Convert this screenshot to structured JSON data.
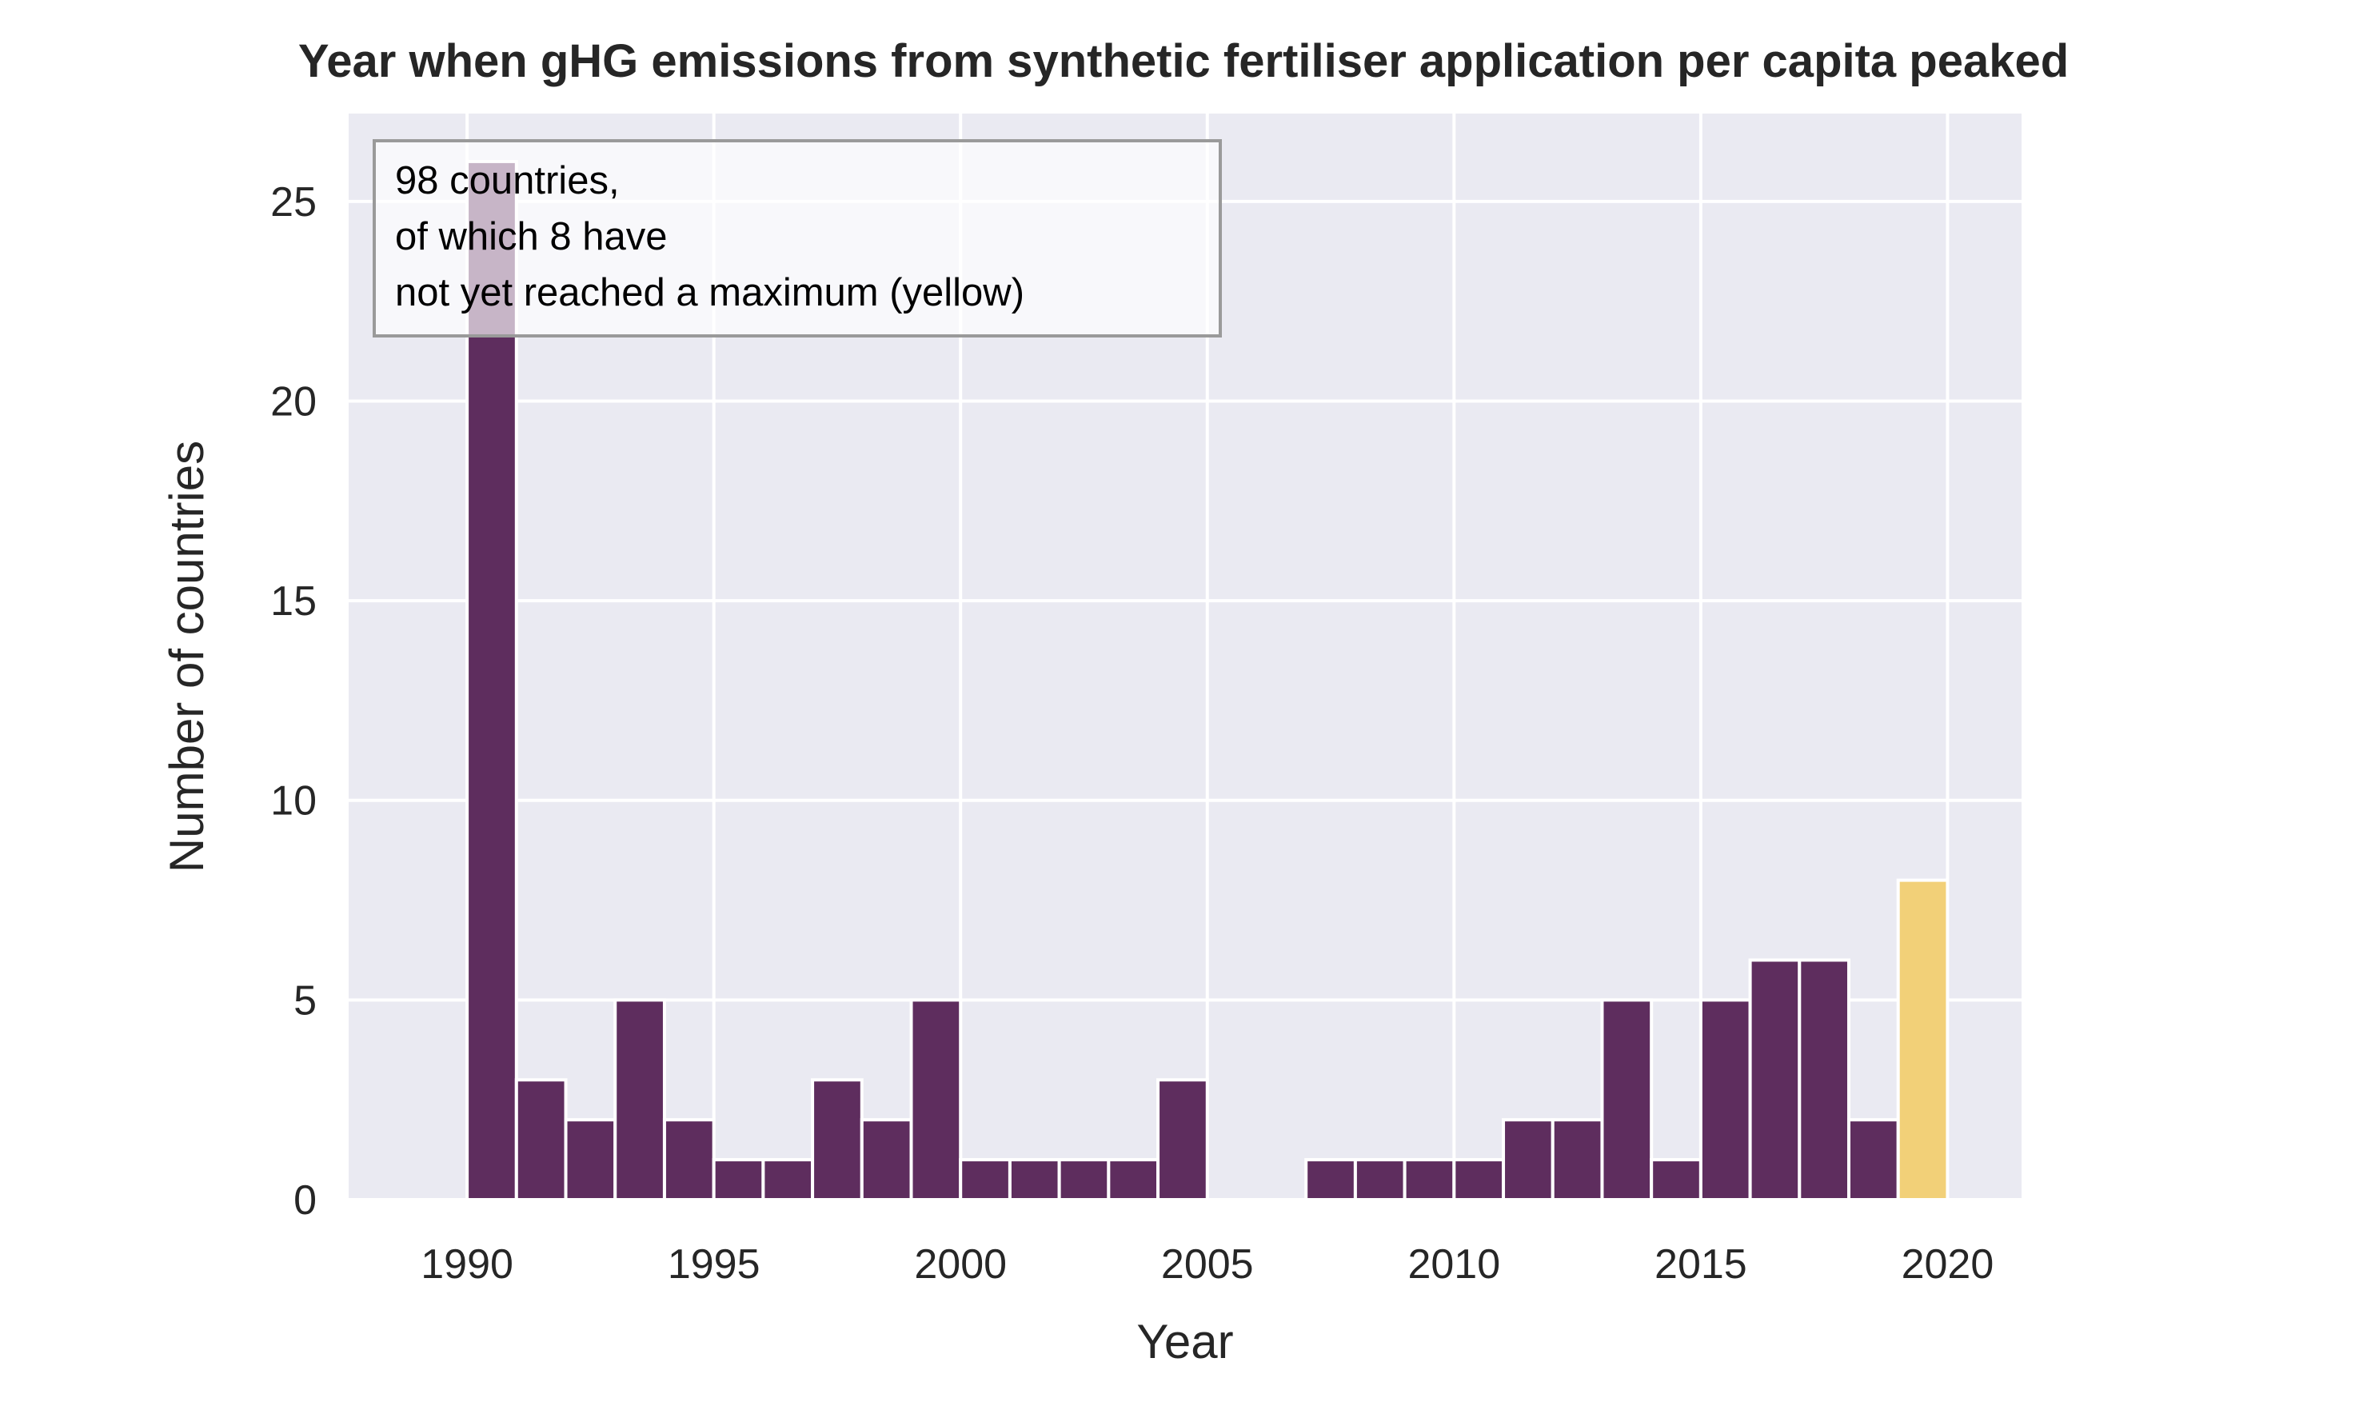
{
  "chart_data": {
    "type": "bar",
    "title": "Year when gHG emissions from synthetic fertiliser application per capita peaked",
    "xlabel": "Year",
    "ylabel": "Number of countries",
    "xlim": [
      1987.6,
      2021.5
    ],
    "ylim": [
      0,
      27.2
    ],
    "xticks": [
      "1990",
      "1995",
      "2000",
      "2005",
      "2010",
      "2015",
      "2020"
    ],
    "yticks": [
      "0",
      "5",
      "10",
      "15",
      "20",
      "25"
    ],
    "grid": true,
    "bin_width": 1,
    "series": [
      {
        "color": "#5e2d5e",
        "bins": [
          {
            "start": 1990,
            "count": 26
          },
          {
            "start": 1991,
            "count": 3
          },
          {
            "start": 1992,
            "count": 2
          },
          {
            "start": 1993,
            "count": 5
          },
          {
            "start": 1994,
            "count": 2
          },
          {
            "start": 1995,
            "count": 1
          },
          {
            "start": 1996,
            "count": 1
          },
          {
            "start": 1997,
            "count": 3
          },
          {
            "start": 1998,
            "count": 2
          },
          {
            "start": 1999,
            "count": 5
          },
          {
            "start": 2000,
            "count": 1
          },
          {
            "start": 2001,
            "count": 1
          },
          {
            "start": 2002,
            "count": 1
          },
          {
            "start": 2003,
            "count": 1
          },
          {
            "start": 2004,
            "count": 3
          },
          {
            "start": 2005,
            "count": 0
          },
          {
            "start": 2006,
            "count": 0
          },
          {
            "start": 2007,
            "count": 1
          },
          {
            "start": 2008,
            "count": 1
          },
          {
            "start": 2009,
            "count": 1
          },
          {
            "start": 2010,
            "count": 1
          },
          {
            "start": 2011,
            "count": 2
          },
          {
            "start": 2012,
            "count": 2
          },
          {
            "start": 2013,
            "count": 5
          },
          {
            "start": 2014,
            "count": 1
          },
          {
            "start": 2015,
            "count": 5
          },
          {
            "start": 2016,
            "count": 6
          },
          {
            "start": 2017,
            "count": 6
          },
          {
            "start": 2018,
            "count": 2
          }
        ]
      },
      {
        "color": "#f2d078",
        "bins": [
          {
            "start": 2019,
            "count": 8
          }
        ]
      }
    ],
    "annotation": {
      "lines": [
        "98 countries,",
        "of which 8 have",
        "not yet reached a maximum (yellow)"
      ],
      "placement": "top-left"
    },
    "colors": {
      "plot_background": "#eaeaf2",
      "grid": "#ffffff",
      "text": "#262626"
    }
  }
}
